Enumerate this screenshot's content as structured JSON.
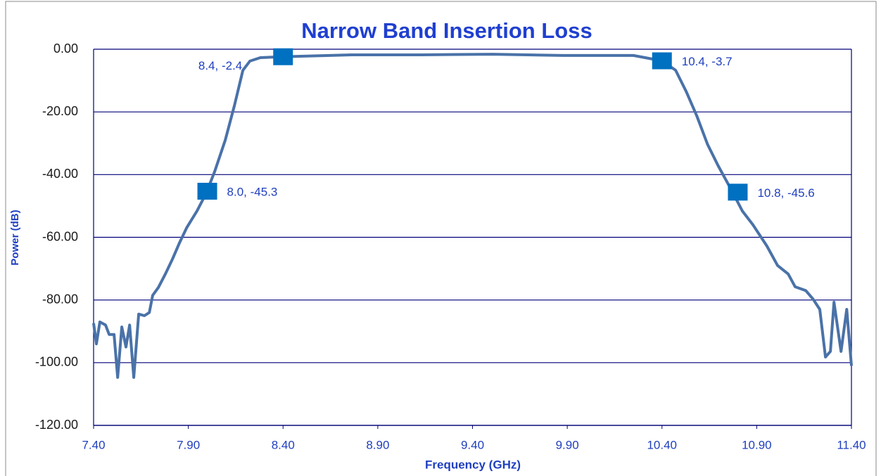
{
  "chart_data": {
    "type": "line",
    "title": "Narrow Band Insertion Loss",
    "x_label": "Frequency (GHz)",
    "y_label": "Power (dB)",
    "xlim": [
      7.4,
      11.4
    ],
    "ylim": [
      -120,
      0
    ],
    "xticks": [
      {
        "value": 7.4,
        "label": "7.40"
      },
      {
        "value": 7.9,
        "label": "7.90"
      },
      {
        "value": 8.4,
        "label": "8.40"
      },
      {
        "value": 8.9,
        "label": "8.90"
      },
      {
        "value": 9.4,
        "label": "9.40"
      },
      {
        "value": 9.9,
        "label": "9.90"
      },
      {
        "value": 10.4,
        "label": "10.40"
      },
      {
        "value": 10.9,
        "label": "10.90"
      },
      {
        "value": 11.4,
        "label": "11.40"
      }
    ],
    "yticks": [
      {
        "value": 0,
        "label": "0.00"
      },
      {
        "value": -20,
        "label": "-20.00"
      },
      {
        "value": -40,
        "label": "-40.00"
      },
      {
        "value": -60,
        "label": "-60.00"
      },
      {
        "value": -80,
        "label": "-80.00"
      },
      {
        "value": -100,
        "label": "-100.00"
      },
      {
        "value": -120,
        "label": "-120.00"
      }
    ],
    "grid": true,
    "series": [
      {
        "color": "#4a72a8",
        "x": [
          7.4,
          7.415,
          7.433,
          7.463,
          7.482,
          7.508,
          7.527,
          7.549,
          7.571,
          7.59,
          7.612,
          7.638,
          7.668,
          7.694,
          7.712,
          7.742,
          7.779,
          7.816,
          7.854,
          7.891,
          7.946,
          7.994,
          8.039,
          8.095,
          8.143,
          8.188,
          8.225,
          8.28,
          8.392,
          8.763,
          9.134,
          9.506,
          9.877,
          10.249,
          10.4,
          10.472,
          10.528,
          10.584,
          10.64,
          10.695,
          10.77,
          10.824,
          10.88,
          10.954,
          11.01,
          11.066,
          11.103,
          11.159,
          11.196,
          11.233,
          11.263,
          11.289,
          11.308,
          11.345,
          11.375,
          11.4
        ],
        "values": [
          -87.4,
          -94,
          -87,
          -88,
          -91,
          -91,
          -104.7,
          -88.6,
          -95,
          -88,
          -104.7,
          -84.5,
          -85,
          -84,
          -78.5,
          -76,
          -71.7,
          -67,
          -61.7,
          -57,
          -51.6,
          -46,
          -39,
          -29,
          -18,
          -6.7,
          -3.8,
          -2.7,
          -2.4,
          -1.8,
          -1.8,
          -1.6,
          -2,
          -2,
          -3.7,
          -6.7,
          -13.5,
          -21.3,
          -30.3,
          -37,
          -45.3,
          -51.6,
          -56,
          -62.8,
          -69,
          -71.7,
          -75.8,
          -77,
          -79.6,
          -83,
          -98.2,
          -96.4,
          -80.7,
          -96.4,
          -83,
          -101
        ]
      }
    ],
    "markers": {
      "color": "#0070c0",
      "x": [
        8.0,
        8.4,
        10.4,
        10.8
      ],
      "values": [
        -45.3,
        -2.4,
        -3.7,
        -45.6
      ],
      "value_labels": [
        "8.0, -45.3",
        "8.4, -2.4",
        "10.4, -3.7",
        "10.8, -45.6"
      ]
    }
  }
}
